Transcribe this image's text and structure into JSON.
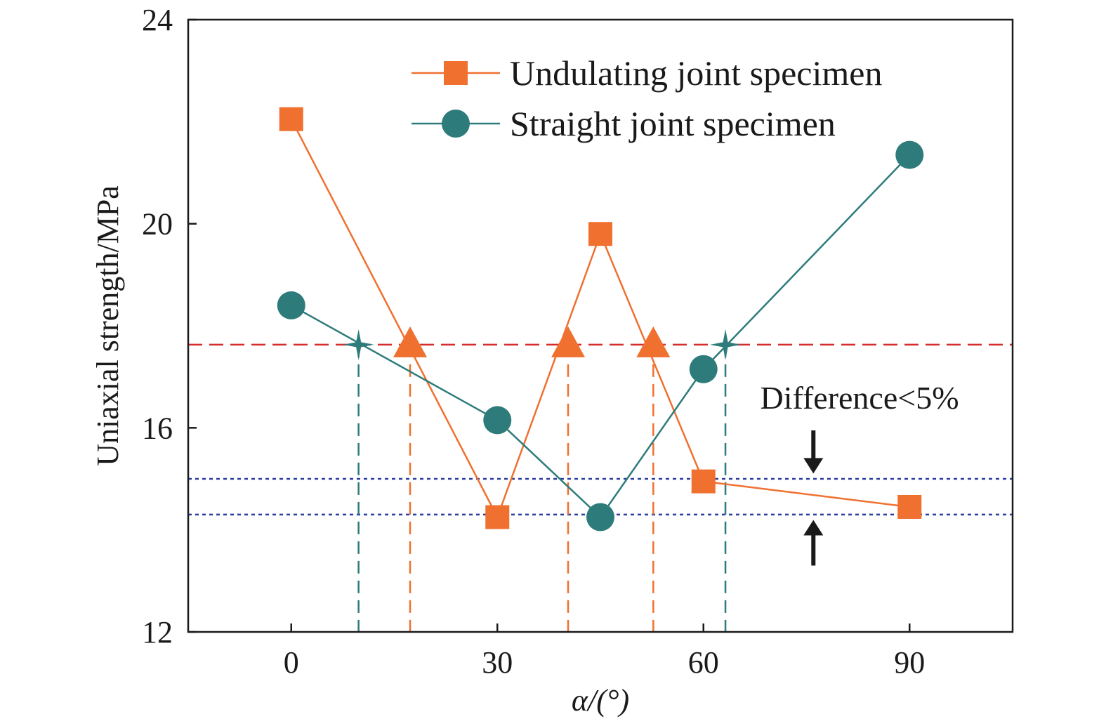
{
  "chart_data": {
    "type": "line",
    "xlabel": "α/(°)",
    "ylabel": "Uniaxial strength/MPa",
    "xlim": [
      -15,
      105
    ],
    "ylim": [
      12,
      24
    ],
    "xticks": [
      0,
      30,
      60,
      90
    ],
    "yticks": [
      12,
      16,
      20,
      24
    ],
    "grid": false,
    "legend_position": "top-right",
    "series": [
      {
        "name": "Undulating joint specimen",
        "color": "#F07030",
        "marker": "square",
        "x": [
          0,
          30,
          45,
          60,
          90
        ],
        "y": [
          22.05,
          14.25,
          19.8,
          14.95,
          14.45
        ]
      },
      {
        "name": "Straight joint specimen",
        "color": "#2E7B7B",
        "marker": "circle",
        "x": [
          0,
          30,
          45,
          60,
          90
        ],
        "y": [
          18.4,
          16.15,
          14.25,
          17.15,
          21.35
        ]
      }
    ],
    "reference_lines": {
      "red_dashed_y": 17.63,
      "blue_dotted_y": [
        15.0,
        14.3
      ],
      "red_color": "#D62C2C",
      "blue_color": "#2C3E9E"
    },
    "intersections": {
      "undulating_triangles": [
        {
          "x": 17.3,
          "y": 17.63
        },
        {
          "x": 40.3,
          "y": 17.63
        },
        {
          "x": 52.7,
          "y": 17.63
        }
      ],
      "straight_stars": [
        {
          "x": 9.8,
          "y": 17.63
        },
        {
          "x": 63.2,
          "y": 17.63
        }
      ]
    },
    "annotation": {
      "text": "Difference<5%",
      "x": 76,
      "arrow_down_from_y": 15.95,
      "arrow_down_to_y": 15.05,
      "arrow_up_from_y": 13.3,
      "arrow_up_to_y": 14.25
    }
  }
}
